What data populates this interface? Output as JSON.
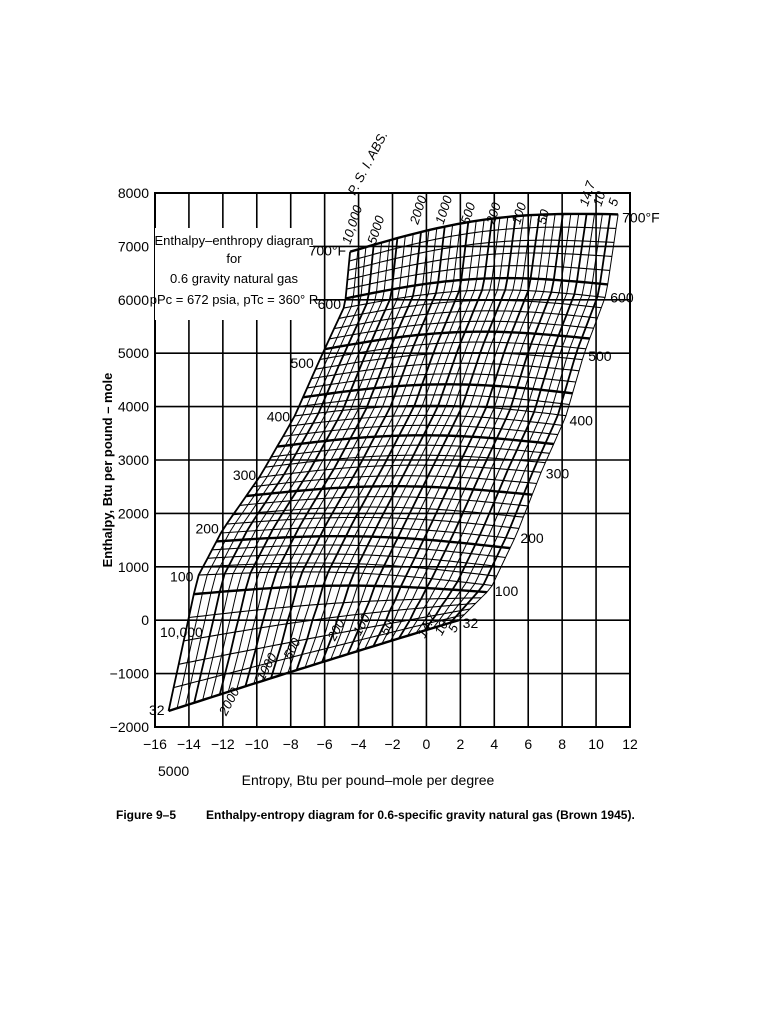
{
  "chart_data": {
    "type": "line",
    "xlabel": "Entropy, Btu per pound–mole per degree",
    "ylabel": "Enthalpy, Btu per pound – mole",
    "xlim": [
      -16,
      12
    ],
    "ylim": [
      -2000,
      8000
    ],
    "x_ticks": [
      "−16",
      "−14",
      "−12",
      "−10",
      "−8",
      "−6",
      "−4",
      "−2",
      "0",
      "2",
      "4",
      "6",
      "8",
      "10",
      "12"
    ],
    "y_ticks": [
      "8000",
      "7000",
      "6000",
      "5000",
      "4000",
      "3000",
      "2000",
      "1000",
      "0",
      "−1000",
      "−2000"
    ],
    "grid": true,
    "inset_title": [
      "Enthalpy–enthropy diagram",
      "for",
      "0.6 gravity natural gas",
      "pPc = 672 psia, pTc = 360° R"
    ],
    "isobar_unit_label": "P. S. I. ABS.",
    "isobars_psia": [
      "10,000",
      "5000",
      "2000",
      "1000",
      "500",
      "200",
      "100",
      "50",
      "14.7",
      "10",
      "5"
    ],
    "isobar_top_entropy": [
      -4.5,
      -3.0,
      -0.5,
      1.0,
      2.5,
      4.0,
      5.5,
      7.0,
      9.5,
      10.3,
      11.2
    ],
    "isobar_bottom_entropy": [
      -14.5,
      -15.5,
      -11.5,
      -9.5,
      -8.0,
      -5.0,
      -3.7,
      -2.2,
      0.3,
      1.2,
      2.0
    ],
    "isotherm_labels_left": [
      "700°F",
      "600",
      "500",
      "400",
      "300",
      "200",
      "100",
      "32"
    ],
    "isotherm_labels_right": [
      "700°F",
      "600",
      "500",
      "400",
      "300",
      "200",
      "100",
      "32"
    ],
    "isotherm_left_points": [
      [
        -4.5,
        6900
      ],
      [
        -4.8,
        5900
      ],
      [
        -6.4,
        4800
      ],
      [
        -7.8,
        3800
      ],
      [
        -9.8,
        2700
      ],
      [
        -12.0,
        1700
      ],
      [
        -13.5,
        800
      ],
      [
        -15.2,
        -1700
      ]
    ],
    "isotherm_right_points": [
      [
        11.3,
        7600
      ],
      [
        10.6,
        6100
      ],
      [
        9.3,
        5000
      ],
      [
        8.2,
        3800
      ],
      [
        6.8,
        2800
      ],
      [
        5.3,
        1600
      ],
      [
        3.8,
        600
      ],
      [
        1.9,
        0
      ]
    ],
    "left_edge_labels": [
      "10,000",
      "5000"
    ],
    "bottom_isobar_labels": [
      "2000",
      "1000",
      "500",
      "200",
      "100",
      "50",
      "14.7",
      "10",
      "5"
    ]
  },
  "caption": {
    "number": "Figure 9–5",
    "text": "Enthalpy-entropy diagram for 0.6-specific gravity natural gas (Brown 1945)."
  }
}
